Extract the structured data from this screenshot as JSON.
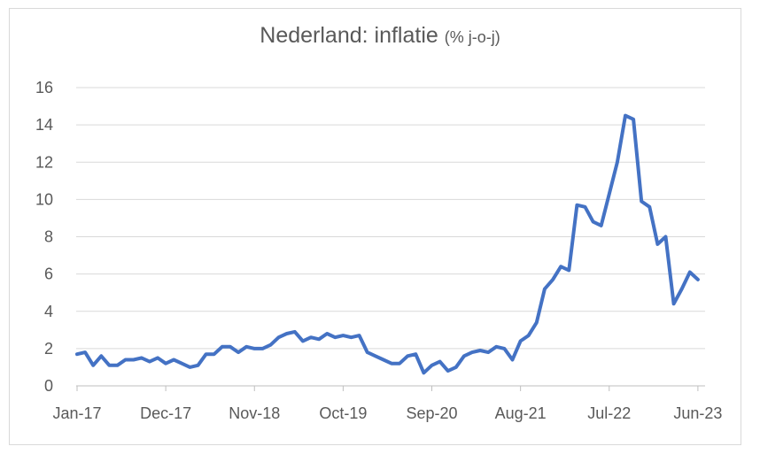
{
  "chart_data": {
    "type": "line",
    "title": "Nederland: inflatie",
    "subtitle": "(% j-o-j)",
    "xlabel": "",
    "ylabel": "",
    "ylim": [
      0,
      16
    ],
    "yticks": [
      "0",
      "2",
      "4",
      "6",
      "8",
      "10",
      "12",
      "14",
      "16"
    ],
    "xticks": [
      "Jan-17",
      "Dec-17",
      "Nov-18",
      "Oct-19",
      "Sep-20",
      "Aug-21",
      "Jul-22",
      "Jun-23"
    ],
    "grid": true,
    "legend": "none",
    "color": "#4472c4",
    "x": [
      "Jan-17",
      "Feb-17",
      "Mar-17",
      "Apr-17",
      "May-17",
      "Jun-17",
      "Jul-17",
      "Aug-17",
      "Sep-17",
      "Oct-17",
      "Nov-17",
      "Dec-17",
      "Jan-18",
      "Feb-18",
      "Mar-18",
      "Apr-18",
      "May-18",
      "Jun-18",
      "Jul-18",
      "Aug-18",
      "Sep-18",
      "Oct-18",
      "Nov-18",
      "Dec-18",
      "Jan-19",
      "Feb-19",
      "Mar-19",
      "Apr-19",
      "May-19",
      "Jun-19",
      "Jul-19",
      "Aug-19",
      "Sep-19",
      "Oct-19",
      "Nov-19",
      "Dec-19",
      "Jan-20",
      "Feb-20",
      "Mar-20",
      "Apr-20",
      "May-20",
      "Jun-20",
      "Jul-20",
      "Aug-20",
      "Sep-20",
      "Oct-20",
      "Nov-20",
      "Dec-20",
      "Jan-21",
      "Feb-21",
      "Mar-21",
      "Apr-21",
      "May-21",
      "Jun-21",
      "Jul-21",
      "Aug-21",
      "Sep-21",
      "Oct-21",
      "Nov-21",
      "Dec-21",
      "Jan-22",
      "Feb-22",
      "Mar-22",
      "Apr-22",
      "May-22",
      "Jun-22",
      "Jul-22",
      "Aug-22",
      "Sep-22",
      "Oct-22",
      "Nov-22",
      "Dec-22",
      "Jan-23",
      "Feb-23",
      "Mar-23",
      "Apr-23",
      "May-23",
      "Jun-23"
    ],
    "series": [
      {
        "values": [
          1.7,
          1.8,
          1.1,
          1.6,
          1.1,
          1.1,
          1.4,
          1.4,
          1.5,
          1.3,
          1.5,
          1.2,
          1.4,
          1.2,
          1.0,
          1.1,
          1.7,
          1.7,
          2.1,
          2.1,
          1.8,
          2.1,
          2.0,
          2.0,
          2.2,
          2.6,
          2.8,
          2.9,
          2.4,
          2.6,
          2.5,
          2.8,
          2.6,
          2.7,
          2.6,
          2.7,
          1.8,
          1.6,
          1.4,
          1.2,
          1.2,
          1.6,
          1.7,
          0.7,
          1.1,
          1.3,
          0.8,
          1.0,
          1.6,
          1.8,
          1.9,
          1.8,
          2.1,
          2.0,
          1.4,
          2.4,
          2.7,
          3.4,
          5.2,
          5.7,
          6.4,
          6.2,
          9.7,
          9.6,
          8.8,
          8.6,
          10.3,
          12.0,
          14.5,
          14.3,
          9.9,
          9.6,
          7.6,
          8.0,
          4.4,
          5.2,
          6.1,
          5.7
        ]
      }
    ]
  }
}
